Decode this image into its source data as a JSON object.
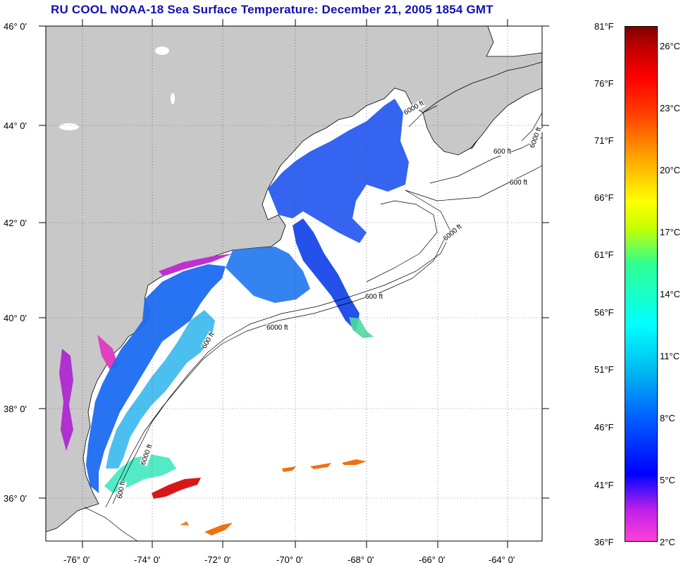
{
  "title": "RU COOL  NOAA-18  Sea Surface Temperature:  December 21, 2005 1854 GMT",
  "latitude_labels": [
    "46° 0'",
    "44° 0'",
    "42° 0'",
    "40° 0'",
    "38° 0'",
    "36° 0'"
  ],
  "longitude_labels": [
    "-76° 0'",
    "-74° 0'",
    "-72° 0'",
    "-70° 0'",
    "-68° 0'",
    "-66° 0'",
    "-64° 0'"
  ],
  "contour_labels": [
    "600 ft",
    "6000 ft",
    "600 ft",
    "6000 ft",
    "600 ft",
    "6000 ft",
    "600 ft",
    "6000 ft",
    "600 ft",
    "6000 ft"
  ],
  "colorbar": {
    "fahrenheit": [
      "81°F",
      "76°F",
      "71°F",
      "66°F",
      "61°F",
      "56°F",
      "51°F",
      "46°F",
      "41°F",
      "36°F"
    ],
    "celsius": [
      "26°C",
      "23°C",
      "20°C",
      "17°C",
      "14°C",
      "11°C",
      "8°C",
      "5°C",
      "2°C"
    ]
  },
  "colors": {
    "title": "#1010b0",
    "land": "#c8c8c8",
    "ocean_no_data": "#ffffff"
  }
}
